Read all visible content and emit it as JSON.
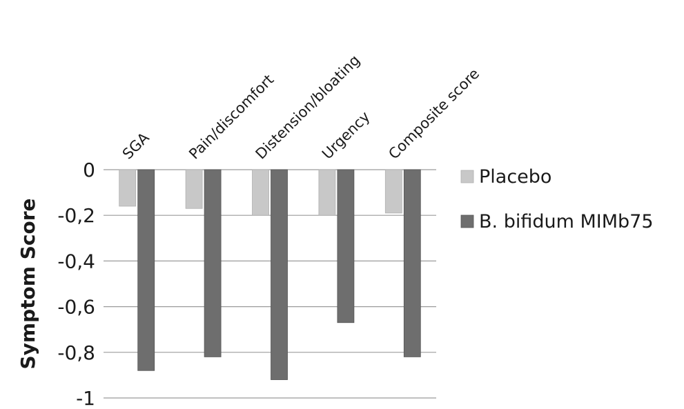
{
  "chart_data": {
    "type": "bar",
    "categories": [
      "SGA",
      "Pain/discomfort",
      "Distension/bloating",
      "Urgency",
      "Composite score"
    ],
    "series": [
      {
        "name": "Placebo",
        "color": "#c8c8c8",
        "values": [
          -0.16,
          -0.17,
          -0.2,
          -0.2,
          -0.19
        ]
      },
      {
        "name": "B. bifidum MIMb75",
        "color": "#6e6e6e",
        "values": [
          -0.88,
          -0.82,
          -0.92,
          -0.67,
          -0.82
        ]
      }
    ],
    "ylabel": "Symptom Score",
    "ylim": [
      -1,
      0
    ],
    "yticks": [
      "0",
      "-0,2",
      "-0,4",
      "-0,6",
      "-0,8",
      "-1"
    ],
    "grid": true,
    "legend_position": "right"
  }
}
